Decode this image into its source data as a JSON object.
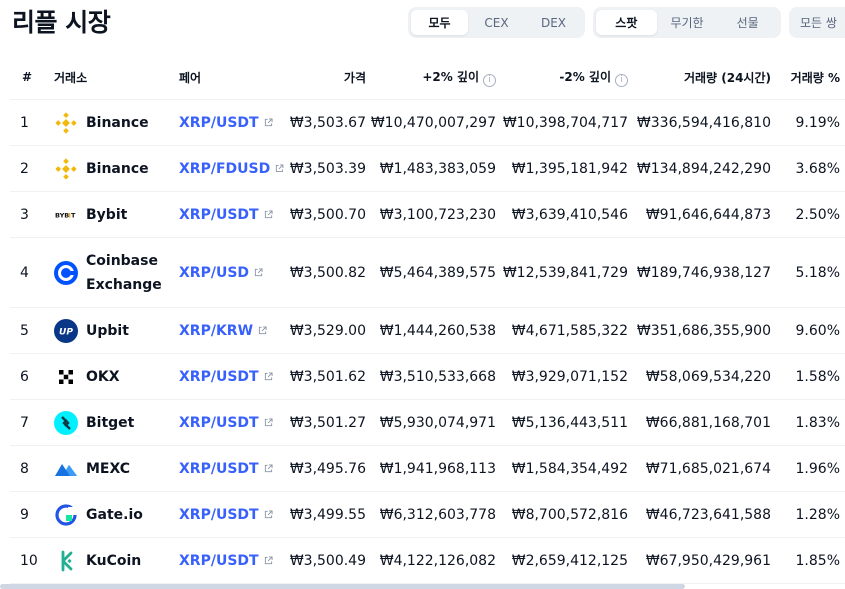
{
  "title": "리플 시장",
  "filters": {
    "type": [
      {
        "label": "모두",
        "active": true
      },
      {
        "label": "CEX",
        "active": false
      },
      {
        "label": "DEX",
        "active": false
      }
    ],
    "market": [
      {
        "label": "스팟",
        "active": true
      },
      {
        "label": "무기한",
        "active": false
      },
      {
        "label": "선물",
        "active": false
      }
    ],
    "pairs_label": "모든 쌍"
  },
  "table": {
    "headers": {
      "rank": "#",
      "exchange": "거래소",
      "pair": "페어",
      "price": "가격",
      "depth_plus": "+2% 깊이",
      "depth_minus": "-2% 깊이",
      "volume": "거래량 (24시간)",
      "volume_pct": "거래량 %"
    },
    "rows": [
      {
        "rank": "1",
        "exchange": "Binance",
        "logo": "binance-logo",
        "pair": "XRP/USDT",
        "price": "₩3,503.67",
        "depth_plus": "₩10,470,007,297",
        "depth_minus": "₩10,398,704,717",
        "volume": "₩336,594,416,810",
        "volume_pct": "9.19%"
      },
      {
        "rank": "2",
        "exchange": "Binance",
        "logo": "binance-logo",
        "pair": "XRP/FDUSD",
        "price": "₩3,503.39",
        "depth_plus": "₩1,483,383,059",
        "depth_minus": "₩1,395,181,942",
        "volume": "₩134,894,242,290",
        "volume_pct": "3.68%"
      },
      {
        "rank": "3",
        "exchange": "Bybit",
        "logo": "bybit-logo",
        "pair": "XRP/USDT",
        "price": "₩3,500.70",
        "depth_plus": "₩3,100,723,230",
        "depth_minus": "₩3,639,410,546",
        "volume": "₩91,646,644,873",
        "volume_pct": "2.50%"
      },
      {
        "rank": "4",
        "exchange": "Coinbase Exchange",
        "logo": "coinbase-logo",
        "pair": "XRP/USD",
        "price": "₩3,500.82",
        "depth_plus": "₩5,464,389,575",
        "depth_minus": "₩12,539,841,729",
        "volume": "₩189,746,938,127",
        "volume_pct": "5.18%"
      },
      {
        "rank": "5",
        "exchange": "Upbit",
        "logo": "upbit-logo",
        "pair": "XRP/KRW",
        "price": "₩3,529.00",
        "depth_plus": "₩1,444,260,538",
        "depth_minus": "₩4,671,585,322",
        "volume": "₩351,686,355,900",
        "volume_pct": "9.60%"
      },
      {
        "rank": "6",
        "exchange": "OKX",
        "logo": "okx-logo",
        "pair": "XRP/USDT",
        "price": "₩3,501.62",
        "depth_plus": "₩3,510,533,668",
        "depth_minus": "₩3,929,071,152",
        "volume": "₩58,069,534,220",
        "volume_pct": "1.58%"
      },
      {
        "rank": "7",
        "exchange": "Bitget",
        "logo": "bitget-logo",
        "pair": "XRP/USDT",
        "price": "₩3,501.27",
        "depth_plus": "₩5,930,074,971",
        "depth_minus": "₩5,136,443,511",
        "volume": "₩66,881,168,701",
        "volume_pct": "1.83%"
      },
      {
        "rank": "8",
        "exchange": "MEXC",
        "logo": "mexc-logo",
        "pair": "XRP/USDT",
        "price": "₩3,495.76",
        "depth_plus": "₩1,941,968,113",
        "depth_minus": "₩1,584,354,492",
        "volume": "₩71,685,021,674",
        "volume_pct": "1.96%"
      },
      {
        "rank": "9",
        "exchange": "Gate.io",
        "logo": "gateio-logo",
        "pair": "XRP/USDT",
        "price": "₩3,499.55",
        "depth_plus": "₩6,312,603,778",
        "depth_minus": "₩8,700,572,816",
        "volume": "₩46,723,641,588",
        "volume_pct": "1.28%"
      },
      {
        "rank": "10",
        "exchange": "KuCoin",
        "logo": "kucoin-logo",
        "pair": "XRP/USDT",
        "price": "₩3,500.49",
        "depth_plus": "₩4,122,126,082",
        "depth_minus": "₩2,659,412,125",
        "volume": "₩67,950,429,961",
        "volume_pct": "1.85%"
      }
    ]
  },
  "colors": {
    "link": "#3861fb",
    "text": "#0d1421",
    "muted": "#58667e",
    "binance": "#f0b90b",
    "coinbase": "#0052ff",
    "upbit": "#093687",
    "bitget": "#00f0ff",
    "mexc": "#1972e2",
    "gateio": "#2354e6",
    "kucoin": "#23af91"
  }
}
